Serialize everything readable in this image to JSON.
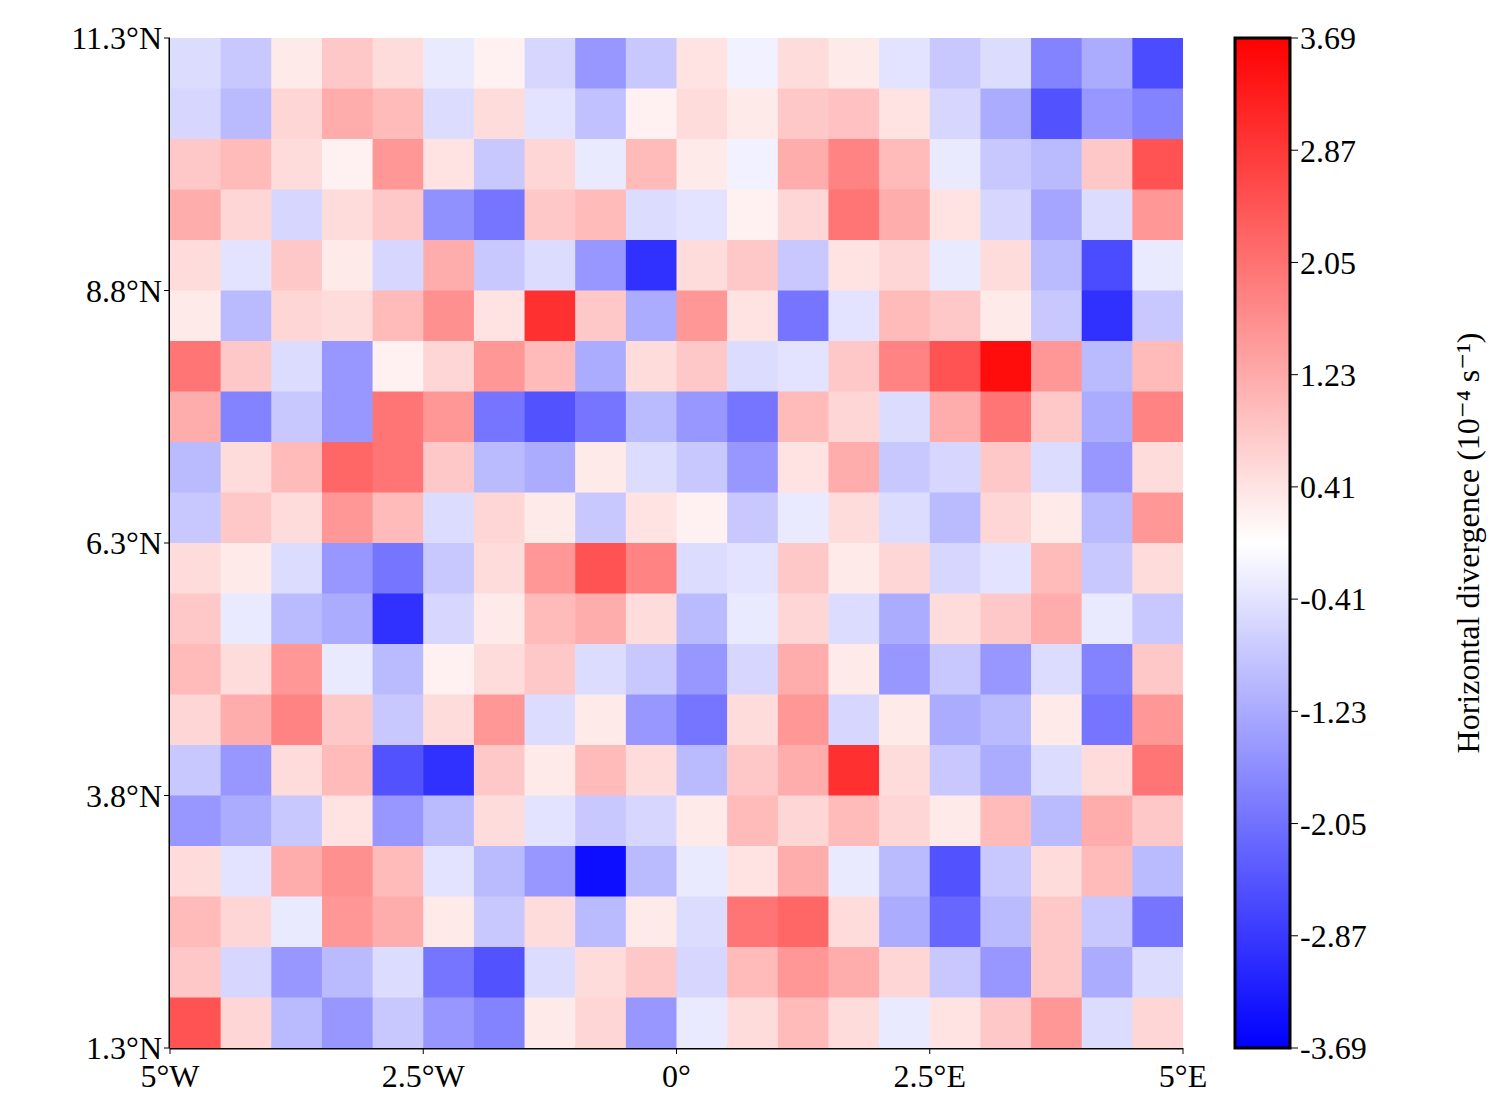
{
  "chart_data": {
    "type": "heatmap",
    "xlim": [
      -5,
      5
    ],
    "xticks": [
      {
        "value": -5,
        "label": "5°W"
      },
      {
        "value": -2.5,
        "label": "2.5°W"
      },
      {
        "value": 0,
        "label": "0°"
      },
      {
        "value": 2.5,
        "label": "2.5°E"
      },
      {
        "value": 5,
        "label": "5°E"
      }
    ],
    "ylim": [
      1.3,
      11.3
    ],
    "yticks": [
      {
        "value": 1.3,
        "label": "1.3°N"
      },
      {
        "value": 3.8,
        "label": "3.8°N"
      },
      {
        "value": 6.3,
        "label": "6.3°N"
      },
      {
        "value": 8.8,
        "label": "8.8°N"
      },
      {
        "value": 11.3,
        "label": "11.3°N"
      }
    ],
    "x": [
      -4.75,
      -4.25,
      -3.75,
      -3.25,
      -2.75,
      -2.25,
      -1.75,
      -1.25,
      -0.75,
      -0.25,
      0.25,
      0.75,
      1.25,
      1.75,
      2.25,
      2.75,
      3.25,
      3.75,
      4.25,
      4.75
    ],
    "y": [
      11.05,
      10.55,
      10.05,
      9.55,
      9.05,
      8.55,
      8.05,
      7.55,
      7.05,
      6.55,
      6.05,
      5.55,
      5.05,
      4.55,
      4.05,
      3.55,
      3.05,
      2.55,
      2.05,
      1.55
    ],
    "cells": [
      [
        -0.5,
        -0.8,
        0.3,
        0.8,
        0.5,
        -0.3,
        0.2,
        -0.6,
        -1.5,
        -0.8,
        0.4,
        -0.2,
        0.5,
        0.3,
        -0.4,
        -0.8,
        -0.5,
        -1.8,
        -1.2,
        -2.6
      ],
      [
        -0.6,
        -1.0,
        0.6,
        1.2,
        1.0,
        -0.5,
        0.5,
        -0.4,
        -0.9,
        0.2,
        0.5,
        0.3,
        0.8,
        0.9,
        0.4,
        -0.6,
        -1.2,
        -2.5,
        -1.5,
        -1.8
      ],
      [
        0.8,
        1.0,
        0.5,
        0.2,
        1.5,
        0.4,
        -0.8,
        0.6,
        -0.3,
        1.0,
        0.3,
        -0.2,
        1.2,
        1.8,
        1.0,
        -0.3,
        -0.8,
        -1.0,
        0.8,
        2.5
      ],
      [
        1.2,
        0.6,
        -0.6,
        0.5,
        0.8,
        -1.6,
        -2.0,
        0.8,
        1.0,
        -0.5,
        -0.4,
        0.2,
        0.6,
        2.0,
        1.2,
        0.4,
        -0.6,
        -1.3,
        -0.5,
        1.5
      ],
      [
        0.5,
        -0.4,
        0.8,
        0.3,
        -0.6,
        1.2,
        -0.8,
        -0.5,
        -1.5,
        -3.0,
        0.5,
        0.8,
        -0.8,
        0.4,
        0.6,
        -0.3,
        0.5,
        -1.0,
        -2.6,
        -0.3
      ],
      [
        0.3,
        -1.0,
        0.6,
        0.5,
        1.0,
        1.6,
        0.4,
        3.0,
        0.8,
        -1.2,
        1.5,
        0.4,
        -2.0,
        -0.4,
        1.0,
        0.8,
        0.3,
        -0.8,
        -3.0,
        -0.8
      ],
      [
        2.0,
        0.8,
        -0.5,
        -1.5,
        0.2,
        0.6,
        1.5,
        1.0,
        -1.2,
        0.5,
        0.8,
        -0.5,
        -0.4,
        0.8,
        1.8,
        2.5,
        3.5,
        1.5,
        -1.0,
        1.0
      ],
      [
        1.2,
        -1.8,
        -0.8,
        -1.5,
        2.0,
        1.5,
        -2.0,
        -2.5,
        -2.0,
        -1.0,
        -1.5,
        -2.0,
        1.0,
        0.6,
        -0.5,
        1.2,
        2.0,
        0.8,
        -1.2,
        1.8
      ],
      [
        -1.0,
        0.5,
        1.0,
        2.2,
        2.0,
        0.8,
        -1.0,
        -1.2,
        0.3,
        -0.5,
        -0.8,
        -1.5,
        0.4,
        1.2,
        -0.8,
        -0.6,
        0.8,
        -0.5,
        -1.5,
        0.5
      ],
      [
        -0.8,
        0.8,
        0.5,
        1.5,
        1.0,
        -0.5,
        0.6,
        0.3,
        -0.8,
        0.4,
        0.2,
        -0.8,
        -0.3,
        0.5,
        -0.5,
        -1.0,
        0.6,
        0.3,
        -1.0,
        1.5
      ],
      [
        0.5,
        0.3,
        -0.5,
        -1.5,
        -2.0,
        -0.8,
        0.5,
        1.5,
        2.5,
        1.8,
        -0.5,
        -0.4,
        0.8,
        0.3,
        0.6,
        -0.6,
        -0.4,
        1.0,
        -0.8,
        0.5
      ],
      [
        0.8,
        -0.3,
        -1.0,
        -1.2,
        -3.0,
        -0.6,
        0.3,
        1.0,
        1.2,
        0.5,
        -1.0,
        -0.3,
        0.6,
        -0.5,
        -1.2,
        0.5,
        0.8,
        1.2,
        -0.3,
        -0.8
      ],
      [
        1.0,
        0.5,
        1.5,
        -0.3,
        -1.0,
        0.2,
        0.5,
        0.8,
        -0.5,
        -0.8,
        -1.5,
        -0.6,
        1.2,
        0.3,
        -1.5,
        -0.8,
        -1.5,
        -0.5,
        -1.8,
        0.8
      ],
      [
        0.6,
        1.2,
        1.8,
        0.8,
        -0.8,
        0.5,
        1.5,
        -0.5,
        0.3,
        -1.5,
        -2.0,
        0.5,
        1.5,
        -0.6,
        0.3,
        -1.2,
        -1.0,
        0.3,
        -2.0,
        1.5
      ],
      [
        -0.8,
        -1.5,
        0.5,
        1.0,
        -2.5,
        -3.0,
        0.8,
        0.3,
        1.0,
        0.5,
        -1.0,
        0.8,
        1.2,
        3.0,
        0.5,
        -0.8,
        -1.2,
        -0.5,
        0.5,
        2.0
      ],
      [
        -1.5,
        -1.2,
        -0.8,
        0.4,
        -1.5,
        -1.0,
        0.5,
        -0.4,
        -0.8,
        -0.6,
        0.3,
        1.0,
        0.6,
        1.0,
        0.6,
        0.3,
        1.0,
        -1.0,
        1.2,
        0.8
      ],
      [
        0.5,
        -0.4,
        1.2,
        1.6,
        1.0,
        -0.4,
        -1.0,
        -1.5,
        -3.5,
        -1.0,
        -0.3,
        0.4,
        1.2,
        -0.3,
        -1.0,
        -2.5,
        -0.8,
        0.5,
        1.0,
        -1.0
      ],
      [
        1.0,
        0.6,
        -0.3,
        1.5,
        1.2,
        0.3,
        -0.8,
        0.5,
        -1.0,
        0.3,
        -0.5,
        2.0,
        2.2,
        0.5,
        -1.2,
        -2.2,
        -1.0,
        0.8,
        -0.8,
        -2.0
      ],
      [
        0.8,
        -0.6,
        -1.5,
        -1.0,
        -0.5,
        -2.0,
        -2.5,
        -0.5,
        0.5,
        0.8,
        -0.6,
        1.0,
        1.5,
        1.2,
        0.6,
        -0.8,
        -1.5,
        0.8,
        -1.2,
        -0.5
      ],
      [
        2.5,
        0.6,
        -1.0,
        -1.5,
        -0.8,
        -1.5,
        -1.8,
        0.3,
        0.6,
        -1.5,
        -0.3,
        0.5,
        1.0,
        0.5,
        -0.3,
        0.4,
        0.8,
        1.5,
        -0.5,
        0.6
      ]
    ],
    "colorbar": {
      "label": "Horizontal divergence (10⁻⁴ s⁻¹)",
      "range": [
        -3.69,
        3.69
      ],
      "ticks": [
        -3.69,
        -2.87,
        -2.05,
        -1.23,
        -0.41,
        0.41,
        1.23,
        2.05,
        2.87,
        3.69
      ]
    }
  }
}
